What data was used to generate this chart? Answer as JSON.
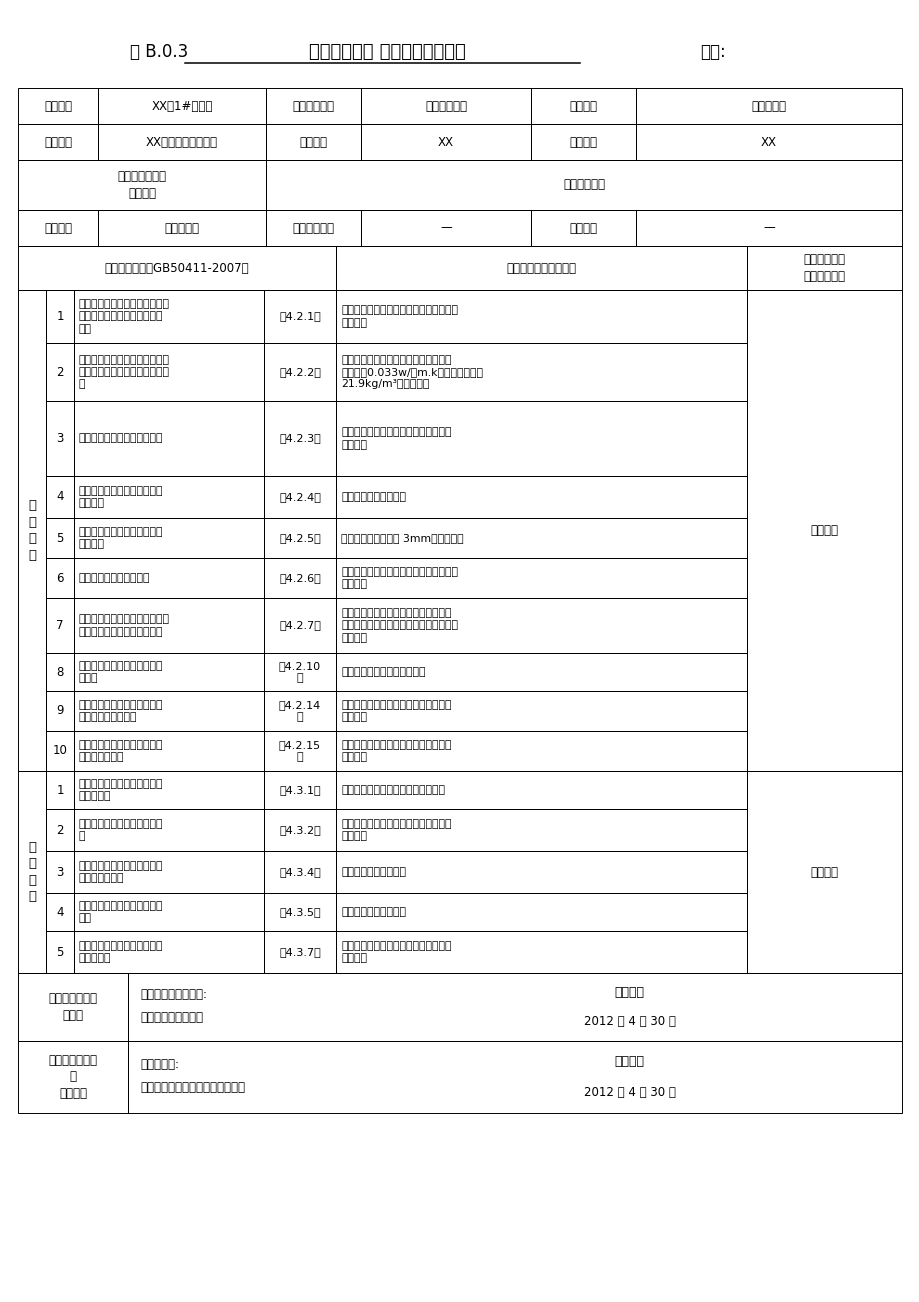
{
  "bg_color": "#ffffff",
  "border_color": "#000000",
  "title_left": "表 B.0.3",
  "title_center": "墙体节能工程 检验批质量验收表",
  "title_right": "编号:",
  "h1": [
    "工程名称",
    "XX园1#住宅楼",
    "分项工程名称",
    "墙体节能工程",
    "验收部位",
    "外墙南立面"
  ],
  "h2": [
    "施工单位",
    "XX建设集团有限公司",
    "专业工长",
    "XX",
    "项目经理",
    "XX"
  ],
  "h3a": "施工执行标准名\n称及编号",
  "h3b": "节能施工方案",
  "h4": [
    "分包单位",
    "无分包单位",
    "分包项目经理",
    "—",
    "施工班组",
    "—"
  ],
  "col_hdr1": "验收规范规定（GB50411-2007）",
  "col_hdr2": "施工单位检查评定记录",
  "col_hdr3": "监理（建设）\n单位验收记录",
  "main_label": "主\n控\n项\n目",
  "main_result": "符合要求",
  "gen_label": "一\n般\n项\n目",
  "gen_result": "符合要求",
  "main_items": [
    {
      "no": "1",
      "desc": "保温材料、构件、其品种、规格\n应符合设计要求和相关标准的\n规定",
      "clause": "第4.2.1条",
      "record": "经核查保温材料为聚苯乙烯泡沫塑料板，\n符合要求",
      "rh": 53
    },
    {
      "no": "2",
      "desc": "保温材料的导热系数、密度、压\n缩强度、燃烧性能应符合设计要\n求",
      "clause": "第4.2.2条",
      "record": "经核查资料，聚苯乙烯泡沫塑料板的导\n热系数为0.033w/（m.k），表观密度为\n21.9kg/m³，符合要求",
      "rh": 58
    },
    {
      "no": "3",
      "desc": "保温材料和粘结材料进场复验",
      "clause": "第4.2.3条",
      "record": "经复验聚苯乙烯泡沫塑料板、胶粘剂均\n符合要求",
      "rh": 75
    },
    {
      "no": "4",
      "desc": "粘结材料的耐冻融试验结果应\n符合要求",
      "clause": "第4.2.4条",
      "record": "经核查资料，符合要求",
      "rh": 42
    },
    {
      "no": "5",
      "desc": "基层处理应符合保温层施工方\n案的要求",
      "clause": "第4.2.5条",
      "record": "表面平整度最大偏差 3mm，符合要求",
      "rh": 40
    },
    {
      "no": "6",
      "desc": "各层构造做法应符合要求",
      "clause": "第4.2.6条",
      "record": "按照设计和施工方案施工，经观察检查，\n符合要求",
      "rh": 40
    },
    {
      "no": "7",
      "desc": "保温材料的厚度、保温板材与基\n层的粘结强度应符合设计要求",
      "clause": "第4.2.7条",
      "record": "经钢针插入和尺量检查，保温材料厚度\n符合要求；保温板材与基层的粘结强度，\n符合要求",
      "rh": 55
    },
    {
      "no": "8",
      "desc": "饰面层的基层及面层施工应符\n合要求",
      "clause": "第4.2.10\n条",
      "record": "符合要求；其它项亦符合要求",
      "rh": 38
    },
    {
      "no": "9",
      "desc": "门窗洞口四周的侧面节能保温\n措施应符合设计要求",
      "clause": "第4.2.14\n条",
      "record": "经观察检查和核查隐蔽工程验收记录，\n符合要求",
      "rh": 40
    },
    {
      "no": "10",
      "desc": "外墙热桥部位应按设计要求采\n取节能保温措施",
      "clause": "第4.2.15\n条",
      "record": "经观察检查和核查隐蔽工程验收记录，\n符合要求",
      "rh": 40
    }
  ],
  "gen_items": [
    {
      "no": "1",
      "desc": "保温材料与构件的外观和包装\n应符合规定",
      "clause": "第4.3.1条",
      "record": "经检查完整无破损，符合要求和规定",
      "rh": 38
    },
    {
      "no": "2",
      "desc": "加强网的铺贴和搭接应符合要\n求",
      "clause": "第4.3.2条",
      "record": "经观察检查和核查隐蔽工程验收记录，\n符合要求",
      "rh": 42
    },
    {
      "no": "3",
      "desc": "施工产生的墙体缺陷应按照施\n工方案采取措施",
      "clause": "第4.3.4条",
      "record": "经观察检查，符合要求",
      "rh": 42
    },
    {
      "no": "4",
      "desc": "保温板材接缝应符合施工方案\n要求",
      "clause": "第4.3.5条",
      "record": "经观察检查，符合要求",
      "rh": 38
    },
    {
      "no": "5",
      "desc": "墙体上特殊部位的保温层应采\n取加强措施",
      "clause": "第4.3.7条",
      "record": "经观察检查和核查隐蔽工程验收记录，\n符合要求",
      "rh": 42
    }
  ],
  "f1_left": "施工单位检查评\n定结果",
  "f1_mid_top": "项目专业质量检查员:",
  "f1_mid_bot": "（项目技术负责人）",
  "f1_result": "符合要求",
  "f1_date": "2012 年 4 月 30 日",
  "f1_rh": 68,
  "f2_left": "监理（建设）单\n位\n验收结论",
  "f2_mid_top": "监理工程师:",
  "f2_mid_bot": "（建设单位项目专业技术负责人）",
  "f2_result": "符合要求",
  "f2_date": "2012 年 4 月 30 日",
  "f2_rh": 72
}
